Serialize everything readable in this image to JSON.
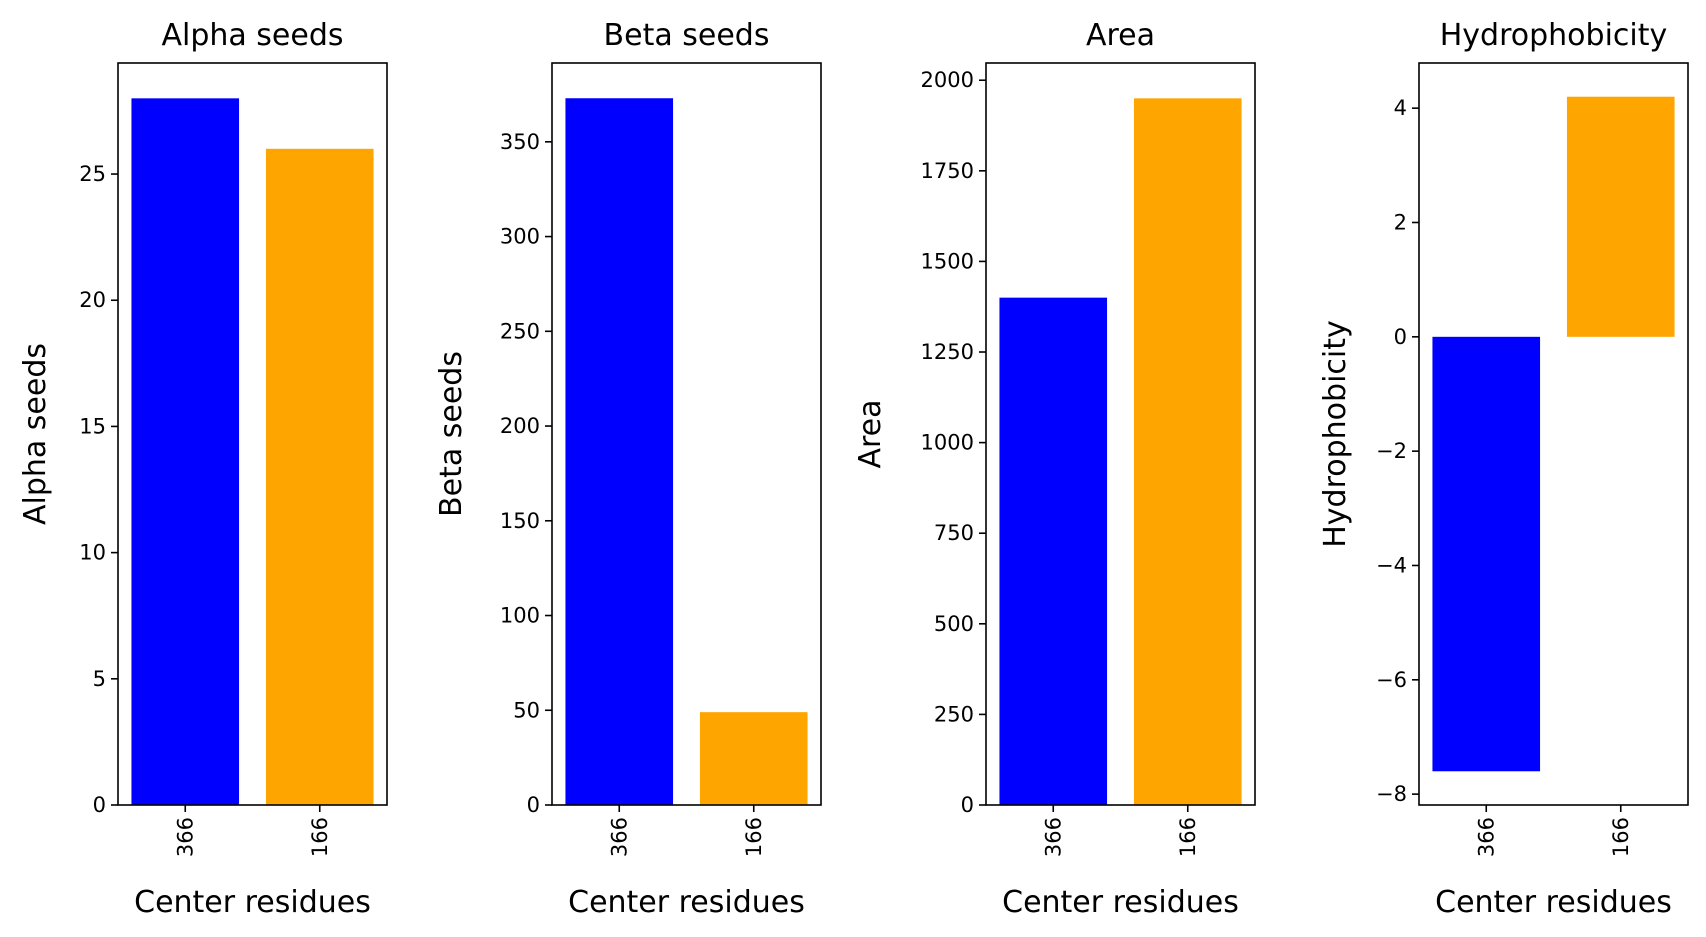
{
  "colors": {
    "series_a": "#0000ff",
    "series_b": "#ffa500"
  },
  "chart_data": [
    {
      "type": "bar",
      "title": "Alpha seeds",
      "xlabel": "Center residues",
      "ylabel": "Alpha seeds",
      "categories": [
        "366",
        "166"
      ],
      "values": [
        28,
        26
      ],
      "ylim": [
        0,
        29.4
      ],
      "yticks": [
        0,
        5,
        10,
        15,
        20,
        25
      ],
      "grid": false
    },
    {
      "type": "bar",
      "title": "Beta seeds",
      "xlabel": "Center residues",
      "ylabel": "Beta seeds",
      "categories": [
        "366",
        "166"
      ],
      "values": [
        373,
        49
      ],
      "ylim": [
        0,
        391.6
      ],
      "yticks": [
        0,
        50,
        100,
        150,
        200,
        250,
        300,
        350
      ],
      "grid": false
    },
    {
      "type": "bar",
      "title": "Area",
      "xlabel": "Center residues",
      "ylabel": "Area",
      "categories": [
        "366",
        "166"
      ],
      "values": [
        1400,
        1950
      ],
      "ylim": [
        0,
        2047.5
      ],
      "yticks": [
        0,
        250,
        500,
        750,
        1000,
        1250,
        1500,
        1750,
        2000
      ],
      "grid": false
    },
    {
      "type": "bar",
      "title": "Hydrophobicity",
      "xlabel": "Center residues",
      "ylabel": "Hydrophobicity",
      "categories": [
        "366",
        "166"
      ],
      "values": [
        -7.6,
        4.2
      ],
      "ylim": [
        -8.19,
        4.79
      ],
      "yticks": [
        -8,
        -6,
        -4,
        -2,
        0,
        2,
        4
      ],
      "grid": false
    }
  ]
}
